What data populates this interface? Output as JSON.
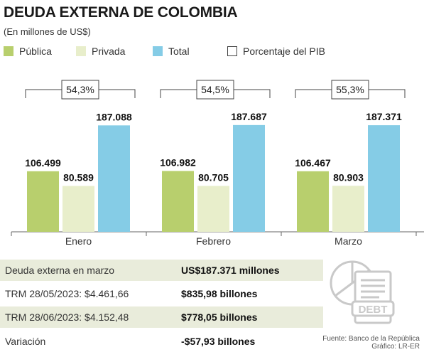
{
  "header": {
    "title": "DEUDA EXTERNA DE COLOMBIA",
    "subtitle": "(En millones de US$)"
  },
  "legend": [
    {
      "label": "Pública",
      "color": "#b8cf6d"
    },
    {
      "label": "Privada",
      "color": "#e8eecb"
    },
    {
      "label": "Total",
      "color": "#85cce6"
    },
    {
      "label": "Porcentaje del PIB",
      "color": "#ffffff"
    }
  ],
  "chart_data": {
    "type": "bar",
    "categories": [
      "Enero",
      "Febrero",
      "Marzo"
    ],
    "series": [
      {
        "name": "Pública",
        "color": "#b8cf6d",
        "values": [
          106499,
          106982,
          106467
        ],
        "labels": [
          "106.499",
          "106.982",
          "106.467"
        ]
      },
      {
        "name": "Privada",
        "color": "#e8eecb",
        "values": [
          80589,
          80705,
          80903
        ],
        "labels": [
          "80.589",
          "80.705",
          "80.903"
        ]
      },
      {
        "name": "Total",
        "color": "#85cce6",
        "values": [
          187088,
          187687,
          187371
        ],
        "labels": [
          "187.088",
          "187.687",
          "187.371"
        ]
      }
    ],
    "pib_percent": [
      "54,3%",
      "54,5%",
      "55,3%"
    ],
    "ylim": [
      0,
      200000
    ],
    "grid": false
  },
  "table": {
    "rows": [
      {
        "label": "Deuda externa en marzo",
        "value": "US$187.371 millones"
      },
      {
        "label": "TRM 28/05/2023: $4.461,66",
        "value": "$835,98 billones"
      },
      {
        "label": "TRM 28/06/2023: $4.152,48",
        "value": "$778,05 billones"
      },
      {
        "label": "Variación",
        "value": "-$57,93 billones"
      }
    ]
  },
  "icon": {
    "name": "debt-icon",
    "text": "DEBT",
    "color": "#c9c9c9"
  },
  "source": {
    "line1": "Fuente: Banco de la República",
    "line2": "Gráfico: LR-ER"
  }
}
